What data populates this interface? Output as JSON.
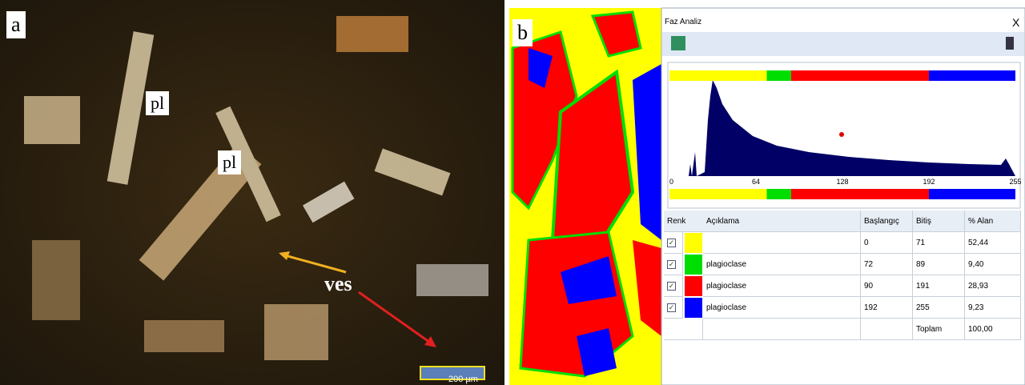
{
  "panel_a": {
    "label": "a",
    "annotations": [
      "pl",
      "pl",
      "ves"
    ],
    "scale_bar": "200 µm"
  },
  "panel_b": {
    "label": "b"
  },
  "window": {
    "title": "Faz Analiz",
    "close": "X",
    "histogram": {
      "axis_labels": [
        "0",
        "64",
        "128",
        "192",
        "255"
      ]
    },
    "table": {
      "columns": [
        "Renk",
        "Açıklama",
        "Başlangıç",
        "Bitiş",
        "% Alan"
      ],
      "rows": [
        {
          "color": "#ffff00",
          "start": "0",
          "end": "71",
          "area": "52,44"
        },
        {
          "color": "#00dd00",
          "description": "plagioclase",
          "start": "72",
          "end": "89",
          "area": "9,40"
        },
        {
          "color": "#ff0000",
          "description": "plagioclase",
          "start": "90",
          "end": "191",
          "area": "28,93"
        },
        {
          "color": "#0000ff",
          "description": "plagioclase",
          "start": "192",
          "end": "255",
          "area": "9,23"
        }
      ],
      "total": {
        "label": "Toplam",
        "area": "100,00"
      }
    }
  }
}
